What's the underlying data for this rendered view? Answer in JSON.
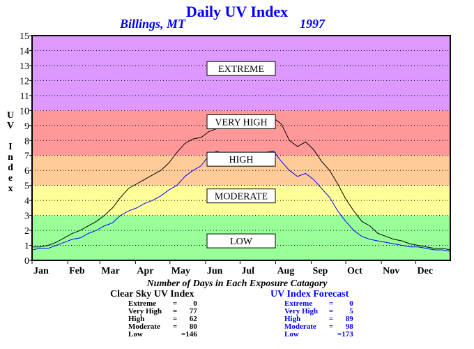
{
  "title": "Daily UV Index",
  "location": "Billings, MT",
  "year": "1997",
  "ylabel": "UV Index",
  "ylabel_letters": [
    "U",
    "V",
    "",
    "I",
    "n",
    "d",
    "e",
    "x"
  ],
  "colors": {
    "low": "#99ff99",
    "moderate": "#ffff99",
    "high": "#ffcc99",
    "very_high": "#ff9999",
    "extreme": "#dd99ff",
    "clear_sky_line": "#000000",
    "forecast_line": "#0000ff"
  },
  "chart_data": {
    "type": "line",
    "title": "Daily UV Index",
    "xlabel": "",
    "ylabel": "UV Index",
    "ylim": [
      0,
      15
    ],
    "xlim": [
      1,
      365
    ],
    "grid": true,
    "y_ticks": [
      0,
      1,
      2,
      3,
      4,
      5,
      6,
      7,
      8,
      9,
      10,
      11,
      12,
      13,
      14,
      15
    ],
    "x_tick_labels": [
      {
        "day": 1,
        "label": "Jan"
      },
      {
        "day": 32,
        "label": "Feb"
      },
      {
        "day": 60,
        "label": "Mar"
      },
      {
        "day": 91,
        "label": "Apr"
      },
      {
        "day": 121,
        "label": "May"
      },
      {
        "day": 152,
        "label": "Jun"
      },
      {
        "day": 182,
        "label": "Jul"
      },
      {
        "day": 213,
        "label": "Aug"
      },
      {
        "day": 244,
        "label": "Sep"
      },
      {
        "day": 274,
        "label": "Oct"
      },
      {
        "day": 305,
        "label": "Nov"
      },
      {
        "day": 335,
        "label": "Dec"
      }
    ],
    "bands": [
      {
        "label": "LOW",
        "from": 0,
        "to": 3,
        "color": "#99ff99",
        "label_y": 1.3
      },
      {
        "label": "MODERATE",
        "from": 3,
        "to": 5,
        "color": "#ffff99",
        "label_y": 4.3
      },
      {
        "label": "HIGH",
        "from": 5,
        "to": 7,
        "color": "#ffcc99",
        "label_y": 6.75
      },
      {
        "label": "VERY HIGH",
        "from": 7,
        "to": 10,
        "color": "#ff9999",
        "label_y": 9.25
      },
      {
        "label": "EXTREME",
        "from": 10,
        "to": 15,
        "color": "#dd99ff",
        "label_y": 12.8
      }
    ],
    "series": [
      {
        "name": "Clear Sky UV Index",
        "color": "#000000",
        "x": [
          1,
          8,
          15,
          22,
          29,
          36,
          43,
          50,
          57,
          64,
          71,
          78,
          85,
          92,
          99,
          106,
          113,
          120,
          127,
          134,
          141,
          148,
          155,
          162,
          169,
          176,
          183,
          190,
          197,
          204,
          211,
          218,
          225,
          232,
          239,
          246,
          253,
          260,
          267,
          274,
          281,
          288,
          295,
          302,
          309,
          316,
          323,
          330,
          337,
          344,
          351,
          358,
          365
        ],
        "values": [
          0.9,
          0.9,
          1.0,
          1.2,
          1.5,
          1.8,
          2.0,
          2.3,
          2.6,
          3.0,
          3.5,
          4.2,
          4.8,
          5.1,
          5.4,
          5.7,
          6.0,
          6.5,
          7.2,
          7.8,
          8.1,
          8.2,
          8.6,
          8.8,
          9.0,
          9.3,
          9.2,
          9.0,
          9.3,
          9.2,
          9.5,
          9.1,
          8.0,
          7.6,
          7.9,
          7.4,
          6.6,
          6.0,
          5.1,
          4.1,
          3.3,
          2.6,
          2.3,
          1.8,
          1.6,
          1.4,
          1.3,
          1.1,
          1.0,
          0.9,
          0.8,
          0.8,
          0.7
        ]
      },
      {
        "name": "UV Index Forecast",
        "color": "#0000ff",
        "x": [
          1,
          8,
          15,
          22,
          29,
          36,
          43,
          50,
          57,
          64,
          71,
          78,
          85,
          92,
          99,
          106,
          113,
          120,
          127,
          134,
          141,
          148,
          155,
          162,
          169,
          176,
          183,
          190,
          197,
          204,
          211,
          218,
          225,
          232,
          239,
          246,
          253,
          260,
          267,
          274,
          281,
          288,
          295,
          302,
          309,
          316,
          323,
          330,
          337,
          344,
          351,
          358,
          365
        ],
        "values": [
          0.7,
          0.8,
          0.8,
          1.0,
          1.2,
          1.4,
          1.5,
          1.8,
          2.0,
          2.3,
          2.5,
          3.0,
          3.3,
          3.5,
          3.8,
          4.0,
          4.3,
          4.7,
          5.0,
          5.6,
          6.0,
          6.3,
          7.0,
          7.3,
          7.0,
          6.8,
          6.6,
          6.5,
          7.0,
          7.2,
          7.3,
          6.6,
          6.0,
          5.6,
          5.8,
          5.4,
          4.8,
          4.2,
          3.3,
          2.6,
          2.0,
          1.6,
          1.4,
          1.3,
          1.2,
          1.1,
          1.0,
          0.9,
          0.9,
          0.8,
          0.7,
          0.7,
          0.6
        ]
      }
    ]
  },
  "summary": {
    "title": "Number of Days in Each Exposure Catagory",
    "clear_sky": {
      "heading": "Clear Sky UV Index",
      "rows": [
        {
          "label": "Extreme",
          "value": "0"
        },
        {
          "label": "Very High",
          "value": "77"
        },
        {
          "label": "High",
          "value": "62"
        },
        {
          "label": "Moderate",
          "value": "80"
        },
        {
          "label": "Low",
          "value": "=146"
        }
      ]
    },
    "forecast": {
      "heading": "UV Index Forecast",
      "rows": [
        {
          "label": "Extreme",
          "value": "0"
        },
        {
          "label": "Very High",
          "value": "5"
        },
        {
          "label": "High",
          "value": "89"
        },
        {
          "label": "Moderate",
          "value": "98"
        },
        {
          "label": "Low",
          "value": "=173"
        }
      ]
    }
  }
}
